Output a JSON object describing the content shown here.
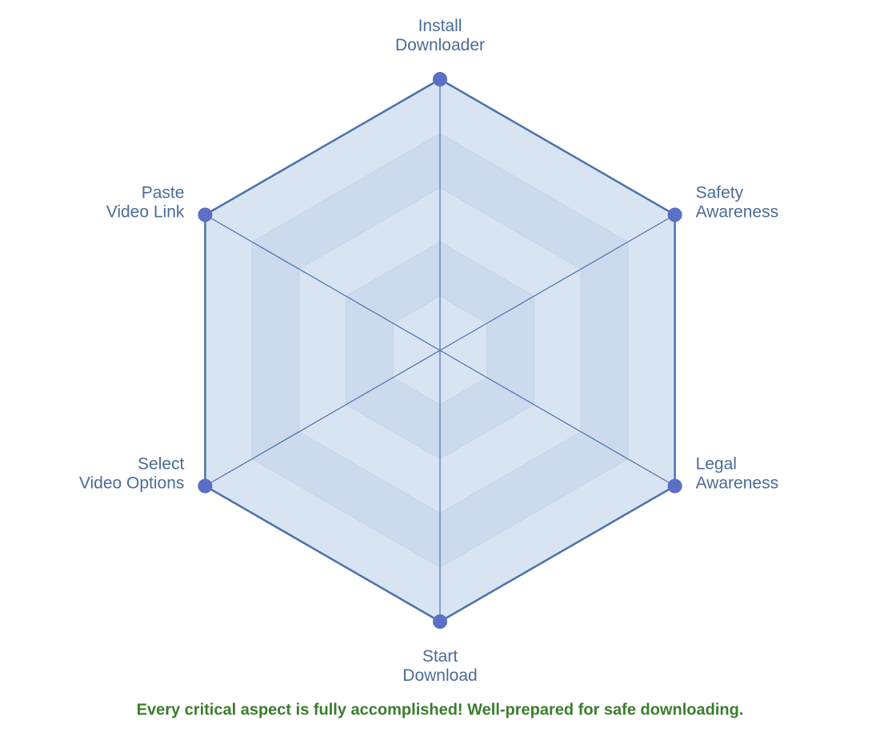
{
  "chart_data": {
    "type": "radar",
    "categories": [
      "Install\nDownloader",
      "Safety\nAwareness",
      "Legal\nAwareness",
      "Start\nDownload",
      "Select\nVideo Options",
      "Paste\nVideo Link"
    ],
    "values": [
      5,
      5,
      5,
      5,
      5,
      5
    ],
    "ylim": [
      0,
      5
    ],
    "grid_levels": 5,
    "color": "#5b6fc7",
    "line_color": "#4a72a8",
    "annotation": "Every critical aspect is fully accomplished! Well-prepared for safe downloading.",
    "annotation_color": "#3a7d2c"
  }
}
